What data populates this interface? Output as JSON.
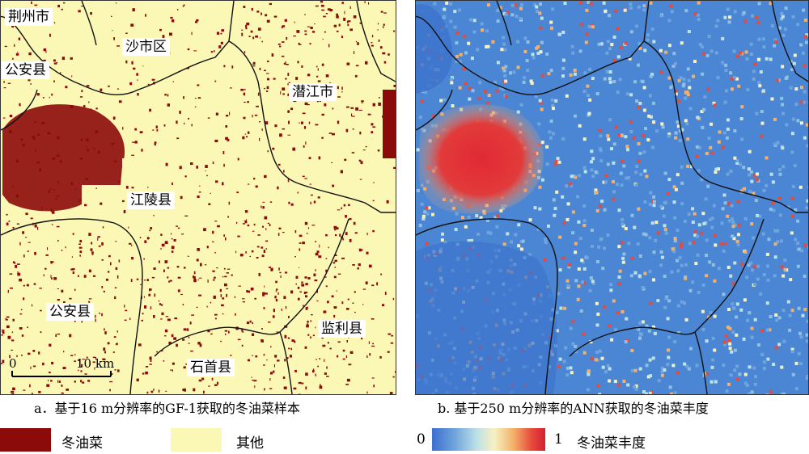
{
  "panel_a": {
    "labels": {
      "jingzhou": "荆州市",
      "shashi": "沙市区",
      "gongan_n": "公安县",
      "qianjiang": "潜江市",
      "jiangling": "江陵县",
      "gongan_s": "公安县",
      "jianli": "监利县",
      "shishou": "石首县"
    },
    "scale": {
      "zero": "0",
      "ten": "10 km"
    },
    "caption": "a．基于16 m分辨率的GF-1获取的冬油菜样本"
  },
  "panel_b": {
    "caption": "b. 基于250 m分辨率的ANN获取的冬油菜丰度"
  },
  "legend": {
    "rapeseed": "冬油菜",
    "other": "其他",
    "min": "0",
    "max": "1",
    "abundance": "冬油菜丰度"
  },
  "colors": {
    "rapeseed": "#8b0a0a",
    "other": "#fbf7b5",
    "abundance_low": "#3b6fd0",
    "abundance_high": "#d42030"
  }
}
